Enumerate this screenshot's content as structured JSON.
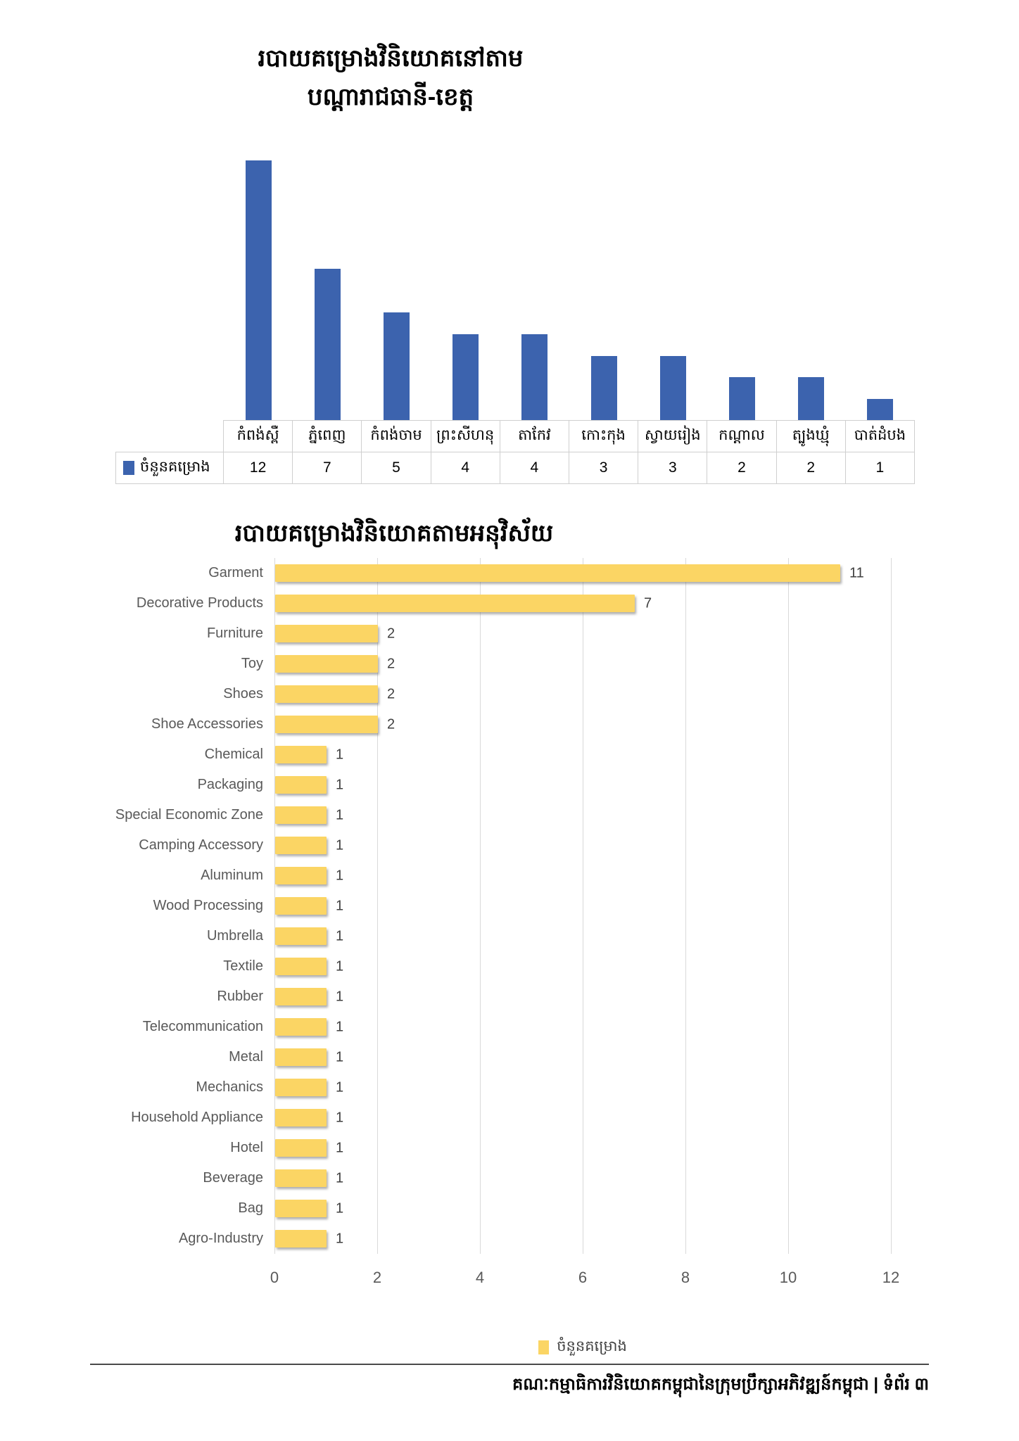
{
  "titles": {
    "chart1_line1": "របាយគម្រោងវិនិយោគនៅតាម",
    "chart1_line2": "បណ្តារាជធានី-ខេត្ត",
    "chart2": "របាយគម្រោងវិនិយោគតាមអនុវិស័យ"
  },
  "footer": {
    "text": "គណៈកម្មាធិការវិនិយោគកម្ពុជានៃក្រុមប្រឹក្សាអភិវឌ្ឍន៍កម្ពុជា | ទំព័រ ៣"
  },
  "chart_data": [
    {
      "type": "bar",
      "orientation": "vertical",
      "title": "របាយគម្រោងវិនិយោគនៅតាម បណ្តារាជធានី-ខេត្ត",
      "categories": [
        "កំពង់ស្ពឺ",
        "ភ្នំពេញ",
        "កំពង់ចាម",
        "ព្រះសីហនុ",
        "តាកែវ",
        "កោះកុង",
        "ស្វាយរៀង",
        "កណ្តាល",
        "ត្បូងឃ្មុំ",
        "បាត់ដំបង"
      ],
      "series": [
        {
          "name": "ចំនួនគម្រោង",
          "values": [
            12,
            7,
            5,
            4,
            4,
            3,
            3,
            2,
            2,
            1
          ]
        }
      ],
      "ylim": [
        0,
        12
      ],
      "bar_color": "#3C63AE",
      "grid": false,
      "data_table_shown": true,
      "legend_label": "ចំនួនគម្រោង",
      "legend_position": "data-table-left"
    },
    {
      "type": "bar",
      "orientation": "horizontal",
      "title": "របាយគម្រោងវិនិយោគតាមអនុវិស័យ",
      "categories": [
        "Garment",
        "Decorative Products",
        "Furniture",
        "Toy",
        "Shoes",
        "Shoe Accessories",
        "Chemical",
        "Packaging",
        "Special Economic Zone",
        "Camping Accessory",
        "Aluminum",
        "Wood Processing",
        "Umbrella",
        "Textile",
        "Rubber",
        "Telecommunication",
        "Metal",
        "Mechanics",
        "Household Appliance",
        "Hotel",
        "Beverage",
        "Bag",
        "Agro-Industry"
      ],
      "series": [
        {
          "name": "ចំនួនគម្រោង",
          "values": [
            11,
            7,
            2,
            2,
            2,
            2,
            1,
            1,
            1,
            1,
            1,
            1,
            1,
            1,
            1,
            1,
            1,
            1,
            1,
            1,
            1,
            1,
            1
          ]
        }
      ],
      "xlim": [
        0,
        12
      ],
      "x_ticks": [
        0,
        2,
        4,
        6,
        8,
        10,
        12
      ],
      "bar_color": "#FBD564",
      "grid": true,
      "gridline_color": "#D9D9D9",
      "data_labels": true,
      "label_color": "#595959",
      "legend_label": "ចំនួនគម្រោង",
      "legend_position": "bottom"
    }
  ]
}
